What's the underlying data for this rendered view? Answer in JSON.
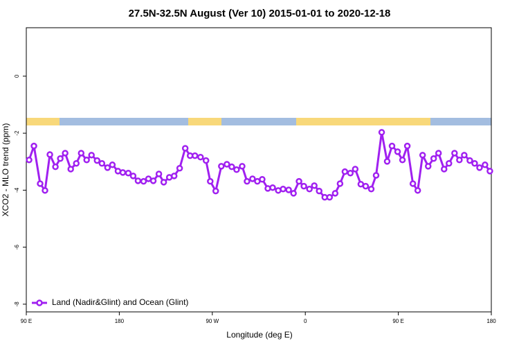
{
  "chart_data": {
    "type": "line",
    "title": "27.5N-32.5N August (Ver 10)   2015-01-01 to 2020-12-18",
    "xlabel": "Longitude (deg E)",
    "ylabel": "XCO2 - MLO trend (ppm)",
    "xlim": [
      90,
      540
    ],
    "xticks": [
      {
        "value": 90,
        "label": "90 E"
      },
      180,
      {
        "value": 270,
        "label": "90 W"
      },
      {
        "value": 360,
        "label": "0"
      },
      {
        "value": 450,
        "label": "90 E"
      },
      {
        "value": 540,
        "label": "180"
      }
    ],
    "ylim": [
      -8.27,
      1.7
    ],
    "yticks": [
      -8,
      -6,
      -4,
      -2,
      0
    ],
    "legend": "bottom-left",
    "series": [
      {
        "name": "Land (Nadir&Glint) and Ocean (Glint)",
        "color": "#a020f0",
        "x": [
          92.7,
          97.4,
          103.4,
          108.1,
          112.8,
          118.2,
          122.9,
          127.6,
          133,
          138.4,
          143.1,
          148.4,
          153.1,
          158.5,
          163.2,
          168.6,
          173.3,
          178.7,
          183.4,
          188.7,
          193.4,
          198.1,
          203.5,
          208.2,
          212.9,
          218.3,
          223,
          228.4,
          233.1,
          238.4,
          243.8,
          248.5,
          253.2,
          258.6,
          263.9,
          268,
          273.3,
          278.7,
          284.1,
          288.8,
          293.5,
          298.9,
          303.6,
          308.9,
          313.6,
          318.3,
          323.7,
          328.4,
          333.8,
          338.5,
          343.9,
          348.6,
          353.9,
          358.6,
          364,
          368.7,
          373.4,
          378.8,
          383.5,
          388.9,
          393.6,
          398.3,
          403.6,
          408.3,
          413.7,
          418.4,
          423.8,
          428.5,
          433.9,
          439.2,
          443.9,
          449.3,
          454,
          458.7,
          464.1,
          468.8,
          473.5,
          478.9,
          484.2,
          488.9,
          494.3,
          499,
          504.4,
          509.1,
          513.8,
          519.2,
          523.9,
          528.6,
          533.9,
          538.6
        ],
        "values": [
          -2.94,
          -2.45,
          -3.77,
          -4.01,
          -2.75,
          -3.18,
          -2.89,
          -2.7,
          -3.26,
          -3.06,
          -2.7,
          -2.94,
          -2.77,
          -2.96,
          -3.06,
          -3.21,
          -3.11,
          -3.33,
          -3.38,
          -3.4,
          -3.5,
          -3.67,
          -3.69,
          -3.6,
          -3.67,
          -3.43,
          -3.72,
          -3.55,
          -3.5,
          -3.23,
          -2.53,
          -2.79,
          -2.79,
          -2.84,
          -2.96,
          -3.69,
          -4.03,
          -3.16,
          -3.09,
          -3.18,
          -3.28,
          -3.16,
          -3.69,
          -3.6,
          -3.69,
          -3.62,
          -3.94,
          -3.91,
          -4.01,
          -3.96,
          -3.99,
          -4.11,
          -3.69,
          -3.86,
          -3.96,
          -3.84,
          -4.03,
          -4.25,
          -4.25,
          -4.11,
          -3.77,
          -3.35,
          -3.4,
          -3.26,
          -3.79,
          -3.86,
          -3.96,
          -3.48,
          -1.97,
          -2.99,
          -2.45,
          -2.65,
          -2.94,
          -2.45,
          -3.77,
          -4.01,
          -2.77,
          -3.16,
          -2.89,
          -2.7,
          -3.26,
          -3.06,
          -2.7,
          -2.94,
          -2.77,
          -2.96,
          -3.06,
          -3.21,
          -3.11,
          -3.33
        ]
      }
    ]
  }
}
